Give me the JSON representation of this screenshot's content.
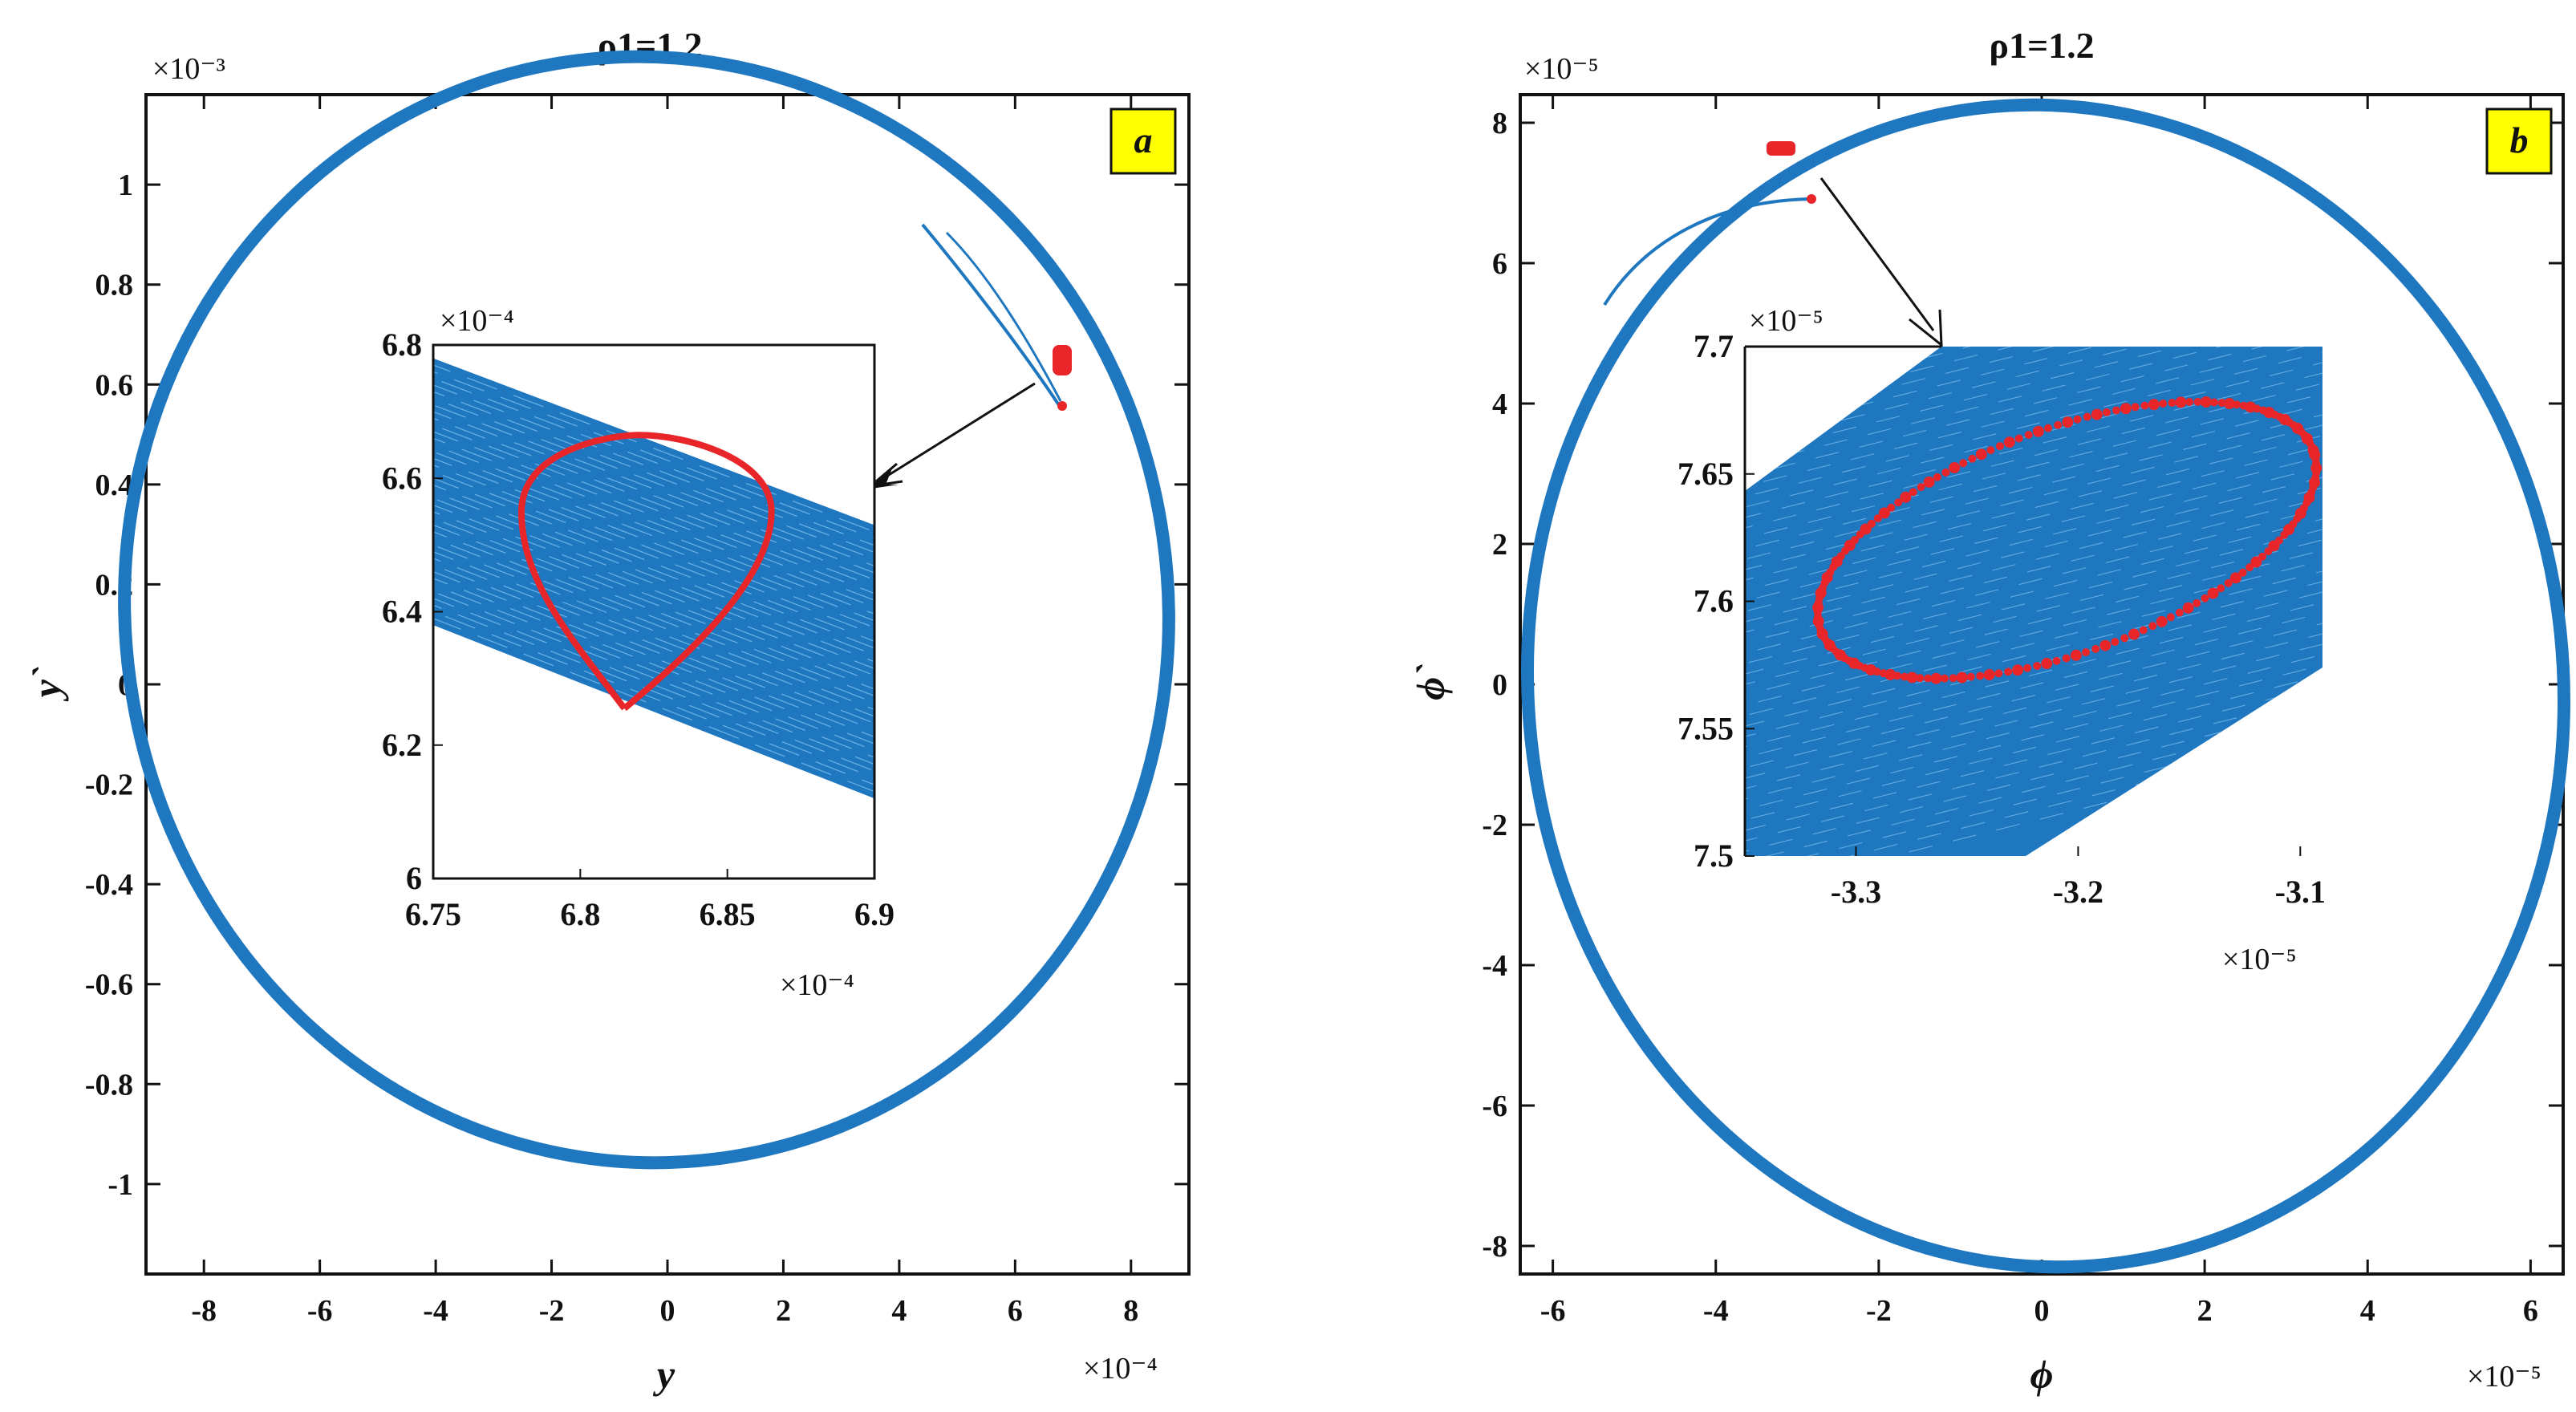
{
  "chart_data": [
    {
      "panel": "a",
      "type": "line",
      "title": "ρ1=1.2",
      "xlabel": "y",
      "ylabel": "y`",
      "x_multiplier": "×10⁻⁴",
      "y_multiplier": "×10⁻³",
      "xlim": [
        -9,
        9
      ],
      "ylim": [
        -1.18,
        1.18
      ],
      "xticks": [
        "-8",
        "-6",
        "-4",
        "-2",
        "0",
        "2",
        "4",
        "6",
        "8"
      ],
      "yticks": [
        "-1",
        "-0.8",
        "-0.6",
        "-0.4",
        "-0.2",
        "0",
        "0.2",
        "0.4",
        "0.6",
        "0.8",
        "1"
      ],
      "series": [
        {
          "kind": "limit-cycle",
          "center": [
            0,
            0.0
          ],
          "rx": 9.0,
          "ry": 1.18,
          "tilt_deg": -8
        },
        {
          "kind": "transient",
          "start": [
            6.85,
            0.71
          ],
          "end": [
            3.8,
            0.98
          ]
        },
        {
          "kind": "poincare-cluster",
          "center": [
            6.8,
            0.66
          ]
        }
      ],
      "inset": {
        "xlim": [
          6.75,
          6.9
        ],
        "ylim": [
          6.0,
          6.8
        ],
        "x_multiplier": "×10⁻⁴",
        "y_multiplier": "×10⁻⁴",
        "xticks": [
          "6.75",
          "6.8",
          "6.85",
          "6.9"
        ],
        "yticks": [
          "6",
          "6.2",
          "6.4",
          "6.6",
          "6.8"
        ],
        "band": {
          "top_left": 6.78,
          "top_right": 6.53,
          "bottom_left": 6.38,
          "bottom_right": 6.12
        },
        "loop": {
          "tip": [
            6.815,
            6.255
          ],
          "top": [
            6.82,
            6.665
          ],
          "left": 6.78,
          "right": 6.865
        }
      }
    },
    {
      "panel": "b",
      "type": "line",
      "title": "ρ1=1.2",
      "xlabel": "ϕ",
      "ylabel": "ϕ`",
      "x_multiplier": "×10⁻⁵",
      "y_multiplier": "×10⁻⁵",
      "xlim": [
        -6.4,
        6.4
      ],
      "ylim": [
        -8.4,
        8.4
      ],
      "xticks": [
        "-6",
        "-4",
        "-2",
        "0",
        "2",
        "4",
        "6"
      ],
      "yticks": [
        "-8",
        "-6",
        "-4",
        "-2",
        "0",
        "2",
        "4",
        "6",
        "8"
      ],
      "series": [
        {
          "kind": "limit-cycle",
          "center": [
            0.2,
            0.0
          ],
          "rx": 6.4,
          "ry": 8.3,
          "tilt_deg": -6
        },
        {
          "kind": "transient",
          "start": [
            -2.85,
            6.9
          ],
          "end": [
            -6.2,
            2.0
          ]
        },
        {
          "kind": "poincare-cluster",
          "center": [
            -3.25,
            7.62
          ]
        }
      ],
      "inset": {
        "xlim": [
          -3.35,
          -3.09
        ],
        "ylim": [
          7.5,
          7.7
        ],
        "x_multiplier": "×10⁻⁵",
        "y_multiplier": "×10⁻⁵",
        "xticks": [
          "-3.3",
          "-3.2",
          "-3.1"
        ],
        "yticks": [
          "7.5",
          "7.55",
          "7.6",
          "7.65",
          "7.7"
        ],
        "loop": {
          "center": [
            -3.205,
            7.624
          ],
          "a": 0.118,
          "b": 0.044,
          "tilt_deg": -20
        }
      }
    }
  ],
  "colors": {
    "cycle": "#1F77C0",
    "poincare": "#E8262A",
    "tag_bg": "#FFFF00",
    "axis": "#111111"
  },
  "panel_tags": {
    "a": "a",
    "b": "b"
  }
}
